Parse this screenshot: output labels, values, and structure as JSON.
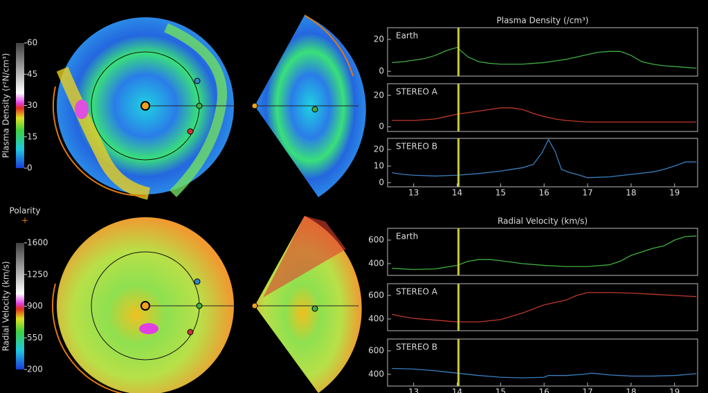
{
  "chart_data": [
    {
      "type": "line",
      "title": "Plasma Density (/cm³)",
      "xlim": [
        12.4,
        19.53
      ],
      "ylim": [
        -3,
        27.4
      ],
      "yticks": [
        0,
        20
      ],
      "marker_x": 14.03,
      "marker_color": "#c8c832",
      "series": [
        {
          "name": "Earth",
          "color": "#3fae3f",
          "x": [
            12.5,
            12.75,
            13,
            13.25,
            13.5,
            13.75,
            14,
            14.25,
            14.5,
            14.75,
            15,
            15.5,
            16,
            16.25,
            16.5,
            16.75,
            17,
            17.25,
            17.5,
            17.75,
            18,
            18.25,
            18.5,
            18.75,
            19,
            19.25,
            19.5
          ],
          "values": [
            5.5,
            6,
            7,
            8,
            10,
            13,
            15,
            9,
            6,
            5,
            4.5,
            4.5,
            5.5,
            6.5,
            7.5,
            9,
            10.5,
            12,
            12.5,
            12.5,
            10,
            6,
            4.5,
            3.5,
            3,
            2.5,
            2
          ]
        }
      ]
    },
    {
      "type": "line",
      "xlim": [
        12.4,
        19.53
      ],
      "ylim": [
        -3,
        27.4
      ],
      "yticks": [
        0,
        20
      ],
      "marker_x": 14.03,
      "marker_color": "#c8c832",
      "series": [
        {
          "name": "STEREO A",
          "color": "#c0392b",
          "x": [
            12.5,
            13,
            13.25,
            13.5,
            13.75,
            14,
            14.25,
            14.5,
            14.75,
            15,
            15.25,
            15.5,
            15.75,
            16,
            16.25,
            16.5,
            16.75,
            17,
            18,
            19,
            19.5
          ],
          "values": [
            4,
            4,
            4.5,
            5,
            6.5,
            8,
            9,
            10,
            11,
            12,
            12,
            11,
            8.5,
            6.5,
            5,
            4,
            3.5,
            3,
            3,
            3,
            3
          ]
        }
      ]
    },
    {
      "type": "line",
      "xlim": [
        12.4,
        19.53
      ],
      "ylim": [
        -2.5,
        26.7
      ],
      "yticks": [
        0,
        10,
        20
      ],
      "xticks": [
        13,
        14,
        15,
        16,
        17,
        18,
        19
      ],
      "marker_x": 14.03,
      "marker_color": "#c8c832",
      "series": [
        {
          "name": "STEREO B",
          "color": "#3a7fc0",
          "x": [
            12.5,
            12.75,
            13,
            13.5,
            14,
            14.5,
            15,
            15.25,
            15.5,
            15.75,
            15.95,
            16.1,
            16.25,
            16.4,
            16.6,
            16.75,
            17,
            17.5,
            18,
            18.5,
            18.75,
            19,
            19.25,
            19.5
          ],
          "values": [
            6,
            5,
            4.5,
            4,
            4.5,
            5.5,
            7,
            8,
            9,
            11,
            18,
            26,
            19,
            8,
            6,
            5,
            3,
            3.5,
            5,
            6.5,
            8,
            10,
            12.5,
            12.5
          ]
        }
      ]
    },
    {
      "type": "line",
      "title": "Radial Velocity (km/s)",
      "xlim": [
        12.4,
        19.53
      ],
      "ylim": [
        300,
        700
      ],
      "yticks": [
        400,
        600
      ],
      "marker_x": 14.03,
      "marker_color": "#c8c832",
      "series": [
        {
          "name": "Earth",
          "color": "#3fae3f",
          "x": [
            12.5,
            13,
            13.5,
            14,
            14.25,
            14.5,
            14.75,
            15,
            15.5,
            16,
            16.5,
            17,
            17.5,
            17.75,
            18,
            18.5,
            18.75,
            19,
            19.25,
            19.5
          ],
          "values": [
            360,
            350,
            355,
            385,
            420,
            435,
            435,
            425,
            400,
            385,
            375,
            375,
            390,
            420,
            470,
            530,
            550,
            600,
            630,
            635
          ]
        }
      ]
    },
    {
      "type": "line",
      "xlim": [
        12.4,
        19.53
      ],
      "ylim": [
        300,
        700
      ],
      "yticks": [
        400,
        600
      ],
      "marker_x": 14.03,
      "marker_color": "#c8c832",
      "series": [
        {
          "name": "STEREO A",
          "color": "#c0392b",
          "x": [
            12.5,
            12.75,
            13,
            13.5,
            14,
            14.5,
            15,
            15.5,
            16,
            16.5,
            16.75,
            17,
            17.5,
            18,
            18.5,
            19,
            19.5
          ],
          "values": [
            440,
            420,
            405,
            390,
            375,
            375,
            395,
            450,
            520,
            560,
            600,
            625,
            625,
            620,
            610,
            600,
            590
          ]
        }
      ]
    },
    {
      "type": "line",
      "xlim": [
        12.4,
        19.53
      ],
      "ylim": [
        300,
        700
      ],
      "yticks": [
        400,
        600
      ],
      "xticks": [
        13,
        14,
        15,
        16,
        17,
        18,
        19
      ],
      "marker_x": 14.03,
      "marker_color": "#c8c832",
      "series": [
        {
          "name": "STEREO B",
          "color": "#3a7fc0",
          "x": [
            12.5,
            13,
            13.5,
            14,
            14.5,
            15,
            15.5,
            16,
            16.1,
            16.5,
            16.9,
            17.1,
            17.5,
            18,
            18.5,
            19,
            19.5
          ],
          "values": [
            450,
            445,
            430,
            410,
            390,
            375,
            370,
            375,
            390,
            390,
            400,
            410,
            395,
            385,
            385,
            390,
            405
          ]
        }
      ]
    },
    {
      "type": "colorbar",
      "label": "Plasma Density (r²N/cm³)",
      "ylim": [
        0,
        60
      ],
      "yticks": [
        0,
        15,
        30,
        45,
        60
      ]
    },
    {
      "type": "colorbar",
      "label": "Radial Velocity (km/s)",
      "ylim": [
        200,
        1600
      ],
      "yticks": [
        200,
        550,
        900,
        1250,
        1600
      ]
    }
  ],
  "polarity": {
    "label": "Polarity",
    "symbol": "+"
  }
}
